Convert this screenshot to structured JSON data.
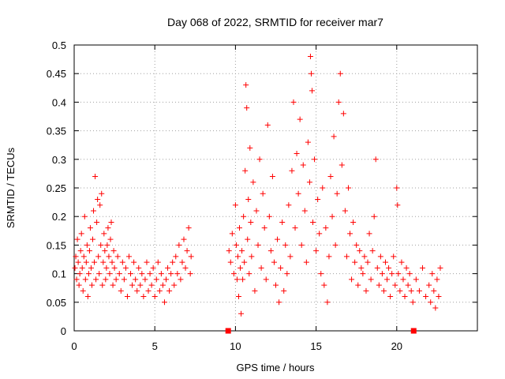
{
  "chart_data": {
    "type": "scatter",
    "title": "Day 068 of 2022, SRMTID for receiver mar7",
    "xlabel": "GPS time / hours",
    "ylabel": "SRMTID / TECUs",
    "xlim": [
      0,
      25
    ],
    "ylim": [
      0,
      0.5
    ],
    "xticks": [
      0,
      5,
      10,
      15,
      20
    ],
    "xtick_labels": [
      "0",
      "5",
      "10",
      "15",
      "20"
    ],
    "yticks": [
      0,
      0.05,
      0.1,
      0.15,
      0.2,
      0.25,
      0.3,
      0.35,
      0.4,
      0.45,
      0.5
    ],
    "ytick_labels": [
      "0",
      "0.05",
      "0.1",
      "0.15",
      "0.2",
      "0.25",
      "0.3",
      "0.35",
      "0.4",
      "0.45",
      "0.5"
    ],
    "grid": true,
    "marker": "plus",
    "color": "#ff0000",
    "series": [
      {
        "name": "SRMTID",
        "points": [
          [
            0.05,
            0.11
          ],
          [
            0.1,
            0.13
          ],
          [
            0.15,
            0.09
          ],
          [
            0.2,
            0.16
          ],
          [
            0.25,
            0.12
          ],
          [
            0.3,
            0.08
          ],
          [
            0.35,
            0.1
          ],
          [
            0.4,
            0.14
          ],
          [
            0.45,
            0.17
          ],
          [
            0.5,
            0.11
          ],
          [
            0.55,
            0.07
          ],
          [
            0.6,
            0.13
          ],
          [
            0.65,
            0.2
          ],
          [
            0.7,
            0.09
          ],
          [
            0.75,
            0.12
          ],
          [
            0.8,
            0.15
          ],
          [
            0.85,
            0.06
          ],
          [
            0.9,
            0.1
          ],
          [
            0.95,
            0.14
          ],
          [
            1.0,
            0.18
          ],
          [
            1.05,
            0.11
          ],
          [
            1.1,
            0.08
          ],
          [
            1.15,
            0.16
          ],
          [
            1.2,
            0.21
          ],
          [
            1.25,
            0.12
          ],
          [
            1.3,
            0.27
          ],
          [
            1.35,
            0.09
          ],
          [
            1.4,
            0.19
          ],
          [
            1.45,
            0.23
          ],
          [
            1.5,
            0.13
          ],
          [
            1.55,
            0.1
          ],
          [
            1.6,
            0.22
          ],
          [
            1.65,
            0.15
          ],
          [
            1.7,
            0.24
          ],
          [
            1.75,
            0.08
          ],
          [
            1.8,
            0.12
          ],
          [
            1.85,
            0.17
          ],
          [
            1.9,
            0.14
          ],
          [
            1.95,
            0.09
          ],
          [
            2.0,
            0.11
          ],
          [
            2.05,
            0.15
          ],
          [
            2.1,
            0.18
          ],
          [
            2.15,
            0.13
          ],
          [
            2.2,
            0.1
          ],
          [
            2.25,
            0.16
          ],
          [
            2.3,
            0.19
          ],
          [
            2.35,
            0.12
          ],
          [
            2.4,
            0.08
          ],
          [
            2.45,
            0.14
          ],
          [
            2.5,
            0.11
          ],
          [
            2.6,
            0.09
          ],
          [
            2.7,
            0.13
          ],
          [
            2.8,
            0.1
          ],
          [
            2.9,
            0.07
          ],
          [
            3.0,
            0.12
          ],
          [
            3.1,
            0.09
          ],
          [
            3.2,
            0.11
          ],
          [
            3.3,
            0.06
          ],
          [
            3.4,
            0.13
          ],
          [
            3.5,
            0.1
          ],
          [
            3.6,
            0.08
          ],
          [
            3.7,
            0.12
          ],
          [
            3.8,
            0.09
          ],
          [
            3.9,
            0.07
          ],
          [
            4.0,
            0.11
          ],
          [
            4.1,
            0.08
          ],
          [
            4.2,
            0.1
          ],
          [
            4.3,
            0.06
          ],
          [
            4.4,
            0.09
          ],
          [
            4.5,
            0.12
          ],
          [
            4.6,
            0.07
          ],
          [
            4.7,
            0.1
          ],
          [
            4.8,
            0.08
          ],
          [
            4.9,
            0.11
          ],
          [
            5.0,
            0.06
          ],
          [
            5.1,
            0.09
          ],
          [
            5.2,
            0.12
          ],
          [
            5.3,
            0.07
          ],
          [
            5.4,
            0.1
          ],
          [
            5.5,
            0.08
          ],
          [
            5.6,
            0.05
          ],
          [
            5.7,
            0.09
          ],
          [
            5.8,
            0.11
          ],
          [
            5.9,
            0.07
          ],
          [
            6.0,
            0.1
          ],
          [
            6.1,
            0.12
          ],
          [
            6.2,
            0.08
          ],
          [
            6.3,
            0.13
          ],
          [
            6.4,
            0.1
          ],
          [
            6.5,
            0.15
          ],
          [
            6.6,
            0.09
          ],
          [
            6.7,
            0.12
          ],
          [
            6.8,
            0.16
          ],
          [
            6.9,
            0.11
          ],
          [
            7.0,
            0.14
          ],
          [
            7.1,
            0.18
          ],
          [
            7.2,
            0.1
          ],
          [
            7.25,
            0.13
          ],
          [
            9.6,
            0.14
          ],
          [
            9.7,
            0.12
          ],
          [
            9.8,
            0.17
          ],
          [
            9.9,
            0.1
          ],
          [
            10.0,
            0.22
          ],
          [
            10.05,
            0.15
          ],
          [
            10.1,
            0.09
          ],
          [
            10.15,
            0.13
          ],
          [
            10.2,
            0.06
          ],
          [
            10.25,
            0.18
          ],
          [
            10.3,
            0.11
          ],
          [
            10.35,
            0.03
          ],
          [
            10.4,
            0.14
          ],
          [
            10.45,
            0.09
          ],
          [
            10.5,
            0.2
          ],
          [
            10.55,
            0.12
          ],
          [
            10.6,
            0.28
          ],
          [
            10.65,
            0.43
          ],
          [
            10.7,
            0.39
          ],
          [
            10.75,
            0.16
          ],
          [
            10.8,
            0.23
          ],
          [
            10.85,
            0.1
          ],
          [
            10.9,
            0.32
          ],
          [
            10.95,
            0.19
          ],
          [
            11.0,
            0.13
          ],
          [
            11.1,
            0.26
          ],
          [
            11.2,
            0.07
          ],
          [
            11.3,
            0.21
          ],
          [
            11.4,
            0.15
          ],
          [
            11.5,
            0.3
          ],
          [
            11.6,
            0.11
          ],
          [
            11.7,
            0.24
          ],
          [
            11.8,
            0.18
          ],
          [
            11.9,
            0.09
          ],
          [
            12.0,
            0.36
          ],
          [
            12.1,
            0.2
          ],
          [
            12.2,
            0.14
          ],
          [
            12.3,
            0.27
          ],
          [
            12.4,
            0.12
          ],
          [
            12.5,
            0.08
          ],
          [
            12.6,
            0.16
          ],
          [
            12.7,
            0.05
          ],
          [
            12.8,
            0.11
          ],
          [
            12.9,
            0.19
          ],
          [
            13.0,
            0.07
          ],
          [
            13.1,
            0.15
          ],
          [
            13.2,
            0.1
          ],
          [
            13.3,
            0.22
          ],
          [
            13.4,
            0.13
          ],
          [
            13.5,
            0.28
          ],
          [
            13.6,
            0.4
          ],
          [
            13.7,
            0.18
          ],
          [
            13.8,
            0.31
          ],
          [
            13.9,
            0.24
          ],
          [
            14.0,
            0.37
          ],
          [
            14.1,
            0.15
          ],
          [
            14.2,
            0.29
          ],
          [
            14.3,
            0.21
          ],
          [
            14.4,
            0.12
          ],
          [
            14.5,
            0.33
          ],
          [
            14.6,
            0.26
          ],
          [
            14.65,
            0.48
          ],
          [
            14.7,
            0.45
          ],
          [
            14.75,
            0.42
          ],
          [
            14.8,
            0.19
          ],
          [
            14.9,
            0.3
          ],
          [
            15.0,
            0.14
          ],
          [
            15.1,
            0.23
          ],
          [
            15.2,
            0.17
          ],
          [
            15.3,
            0.1
          ],
          [
            15.4,
            0.25
          ],
          [
            15.5,
            0.08
          ],
          [
            15.6,
            0.18
          ],
          [
            15.7,
            0.05
          ],
          [
            15.8,
            0.13
          ],
          [
            15.9,
            0.27
          ],
          [
            16.0,
            0.2
          ],
          [
            16.1,
            0.34
          ],
          [
            16.2,
            0.15
          ],
          [
            16.3,
            0.24
          ],
          [
            16.4,
            0.4
          ],
          [
            16.5,
            0.45
          ],
          [
            16.6,
            0.29
          ],
          [
            16.7,
            0.38
          ],
          [
            16.8,
            0.21
          ],
          [
            16.9,
            0.13
          ],
          [
            17.0,
            0.25
          ],
          [
            17.1,
            0.17
          ],
          [
            17.2,
            0.09
          ],
          [
            17.3,
            0.19
          ],
          [
            17.4,
            0.12
          ],
          [
            17.5,
            0.15
          ],
          [
            17.6,
            0.08
          ],
          [
            17.7,
            0.14
          ],
          [
            17.8,
            0.11
          ],
          [
            17.9,
            0.1
          ],
          [
            18.0,
            0.13
          ],
          [
            18.1,
            0.07
          ],
          [
            18.2,
            0.12
          ],
          [
            18.3,
            0.17
          ],
          [
            18.4,
            0.09
          ],
          [
            18.5,
            0.14
          ],
          [
            18.6,
            0.2
          ],
          [
            18.7,
            0.3
          ],
          [
            18.8,
            0.11
          ],
          [
            18.9,
            0.08
          ],
          [
            19.0,
            0.13
          ],
          [
            19.1,
            0.1
          ],
          [
            19.2,
            0.07
          ],
          [
            19.3,
            0.12
          ],
          [
            19.4,
            0.09
          ],
          [
            19.5,
            0.11
          ],
          [
            19.6,
            0.06
          ],
          [
            19.7,
            0.1
          ],
          [
            19.8,
            0.13
          ],
          [
            19.9,
            0.08
          ],
          [
            20.0,
            0.25
          ],
          [
            20.05,
            0.22
          ],
          [
            20.1,
            0.1
          ],
          [
            20.2,
            0.07
          ],
          [
            20.3,
            0.12
          ],
          [
            20.4,
            0.09
          ],
          [
            20.5,
            0.06
          ],
          [
            20.6,
            0.11
          ],
          [
            20.7,
            0.08
          ],
          [
            20.8,
            0.1
          ],
          [
            20.9,
            0.07
          ],
          [
            21.0,
            0.05
          ],
          [
            21.2,
            0.09
          ],
          [
            21.4,
            0.07
          ],
          [
            21.6,
            0.11
          ],
          [
            21.8,
            0.06
          ],
          [
            22.0,
            0.08
          ],
          [
            22.1,
            0.05
          ],
          [
            22.2,
            0.1
          ],
          [
            22.3,
            0.07
          ],
          [
            22.4,
            0.04
          ],
          [
            22.5,
            0.09
          ],
          [
            22.6,
            0.06
          ],
          [
            22.7,
            0.11
          ]
        ]
      }
    ],
    "zero_markers": [
      [
        9.55,
        0
      ],
      [
        21.05,
        0
      ]
    ]
  }
}
